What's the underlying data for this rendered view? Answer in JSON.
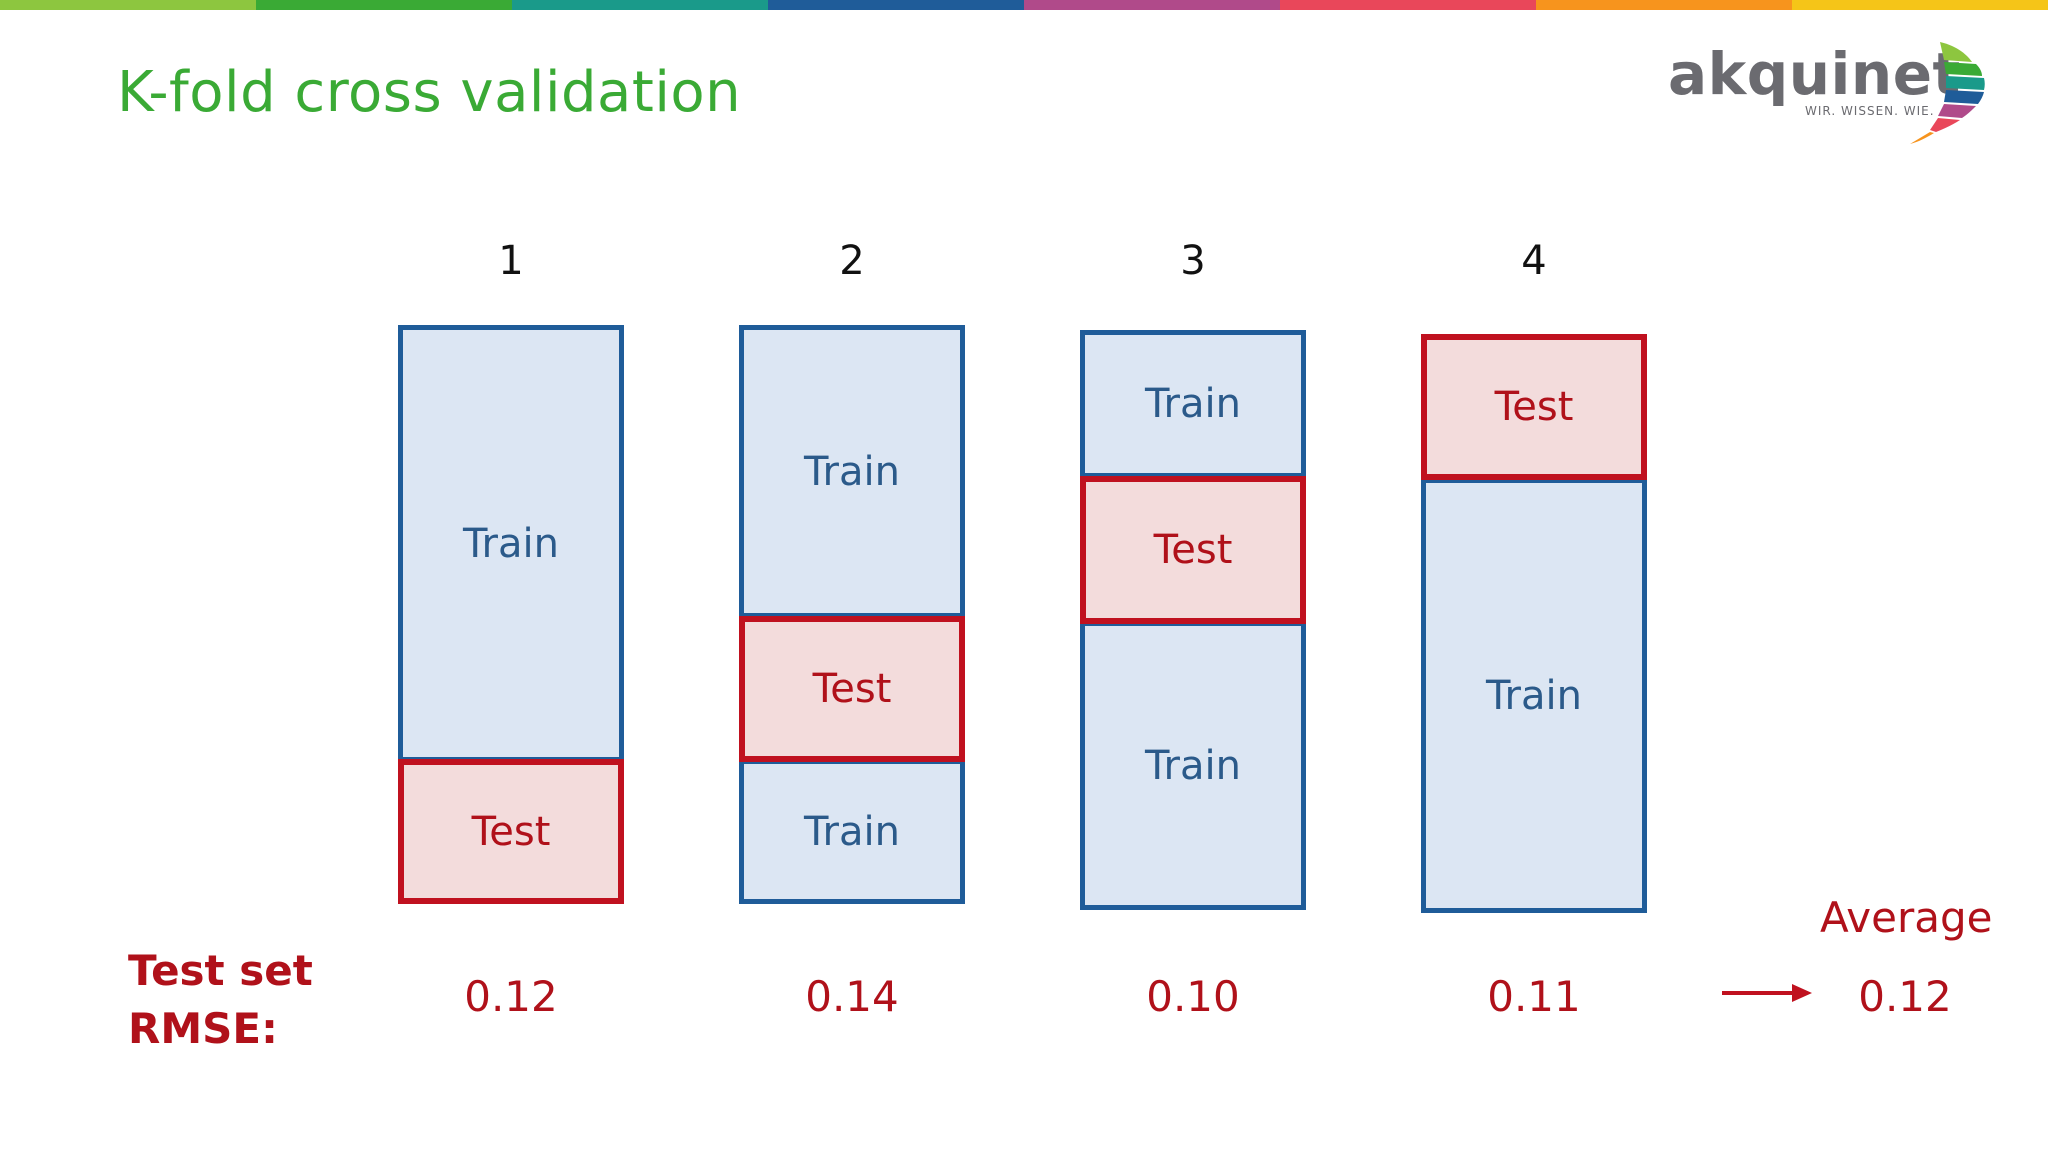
{
  "title": "K-fold cross validation",
  "logo": {
    "text": "akquinet",
    "tagline": "WIR. WISSEN. WIE."
  },
  "top_bar_colors": [
    "#8dc63f",
    "#3aaa35",
    "#1a9a8a",
    "#1f5c99",
    "#b04a8a",
    "#e9475a",
    "#f7941d",
    "#f5c518"
  ],
  "diagram": {
    "folds": [
      {
        "number": "1",
        "parts": [
          {
            "kind": "train",
            "label": "Train"
          },
          {
            "kind": "test",
            "label": "Test"
          }
        ],
        "rmse": "0.12"
      },
      {
        "number": "2",
        "parts": [
          {
            "kind": "train",
            "label": "Train"
          },
          {
            "kind": "test",
            "label": "Test"
          },
          {
            "kind": "train",
            "label": "Train"
          }
        ],
        "rmse": "0.14"
      },
      {
        "number": "3",
        "parts": [
          {
            "kind": "train",
            "label": "Train"
          },
          {
            "kind": "test",
            "label": "Test"
          },
          {
            "kind": "train",
            "label": "Train"
          }
        ],
        "rmse": "0.10"
      },
      {
        "number": "4",
        "parts": [
          {
            "kind": "test",
            "label": "Test"
          },
          {
            "kind": "train",
            "label": "Train"
          }
        ],
        "rmse": "0.11"
      }
    ],
    "rmse_label": [
      "Test set",
      "RMSE:"
    ],
    "average_label": "Average",
    "average_value": "0.12"
  },
  "colors": {
    "title_green": "#3aaa35",
    "train_fill": "#dce6f3",
    "train_border": "#1f5c99",
    "test_fill": "#f3dcdc",
    "test_border": "#c0111f",
    "accent_red": "#b0111a"
  }
}
